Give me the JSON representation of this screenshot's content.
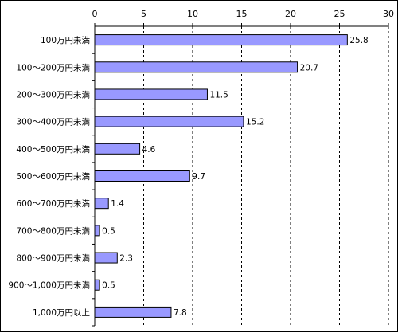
{
  "chart_data": {
    "type": "bar",
    "orientation": "horizontal",
    "categories": [
      "100万円未満",
      "100～200万円未満",
      "200～300万円未満",
      "300～400万円未満",
      "400～500万円未満",
      "500～600万円未満",
      "600～700万円未満",
      "700～800万円未満",
      "800～900万円未満",
      "900～1,000万円未満",
      "1,000万円以上"
    ],
    "values": [
      25.8,
      20.7,
      11.5,
      15.2,
      4.6,
      9.7,
      1.4,
      0.5,
      2.3,
      0.5,
      7.8
    ],
    "xlim": [
      0,
      30
    ],
    "xticks": [
      0,
      5,
      10,
      15,
      20,
      25,
      30
    ],
    "axis_position": "top",
    "grid": "vertical dashed",
    "data_labels": true,
    "bar_color": "#9999FF",
    "bar_edge_color": "#000000",
    "title": "",
    "xlabel": "",
    "ylabel": ""
  }
}
